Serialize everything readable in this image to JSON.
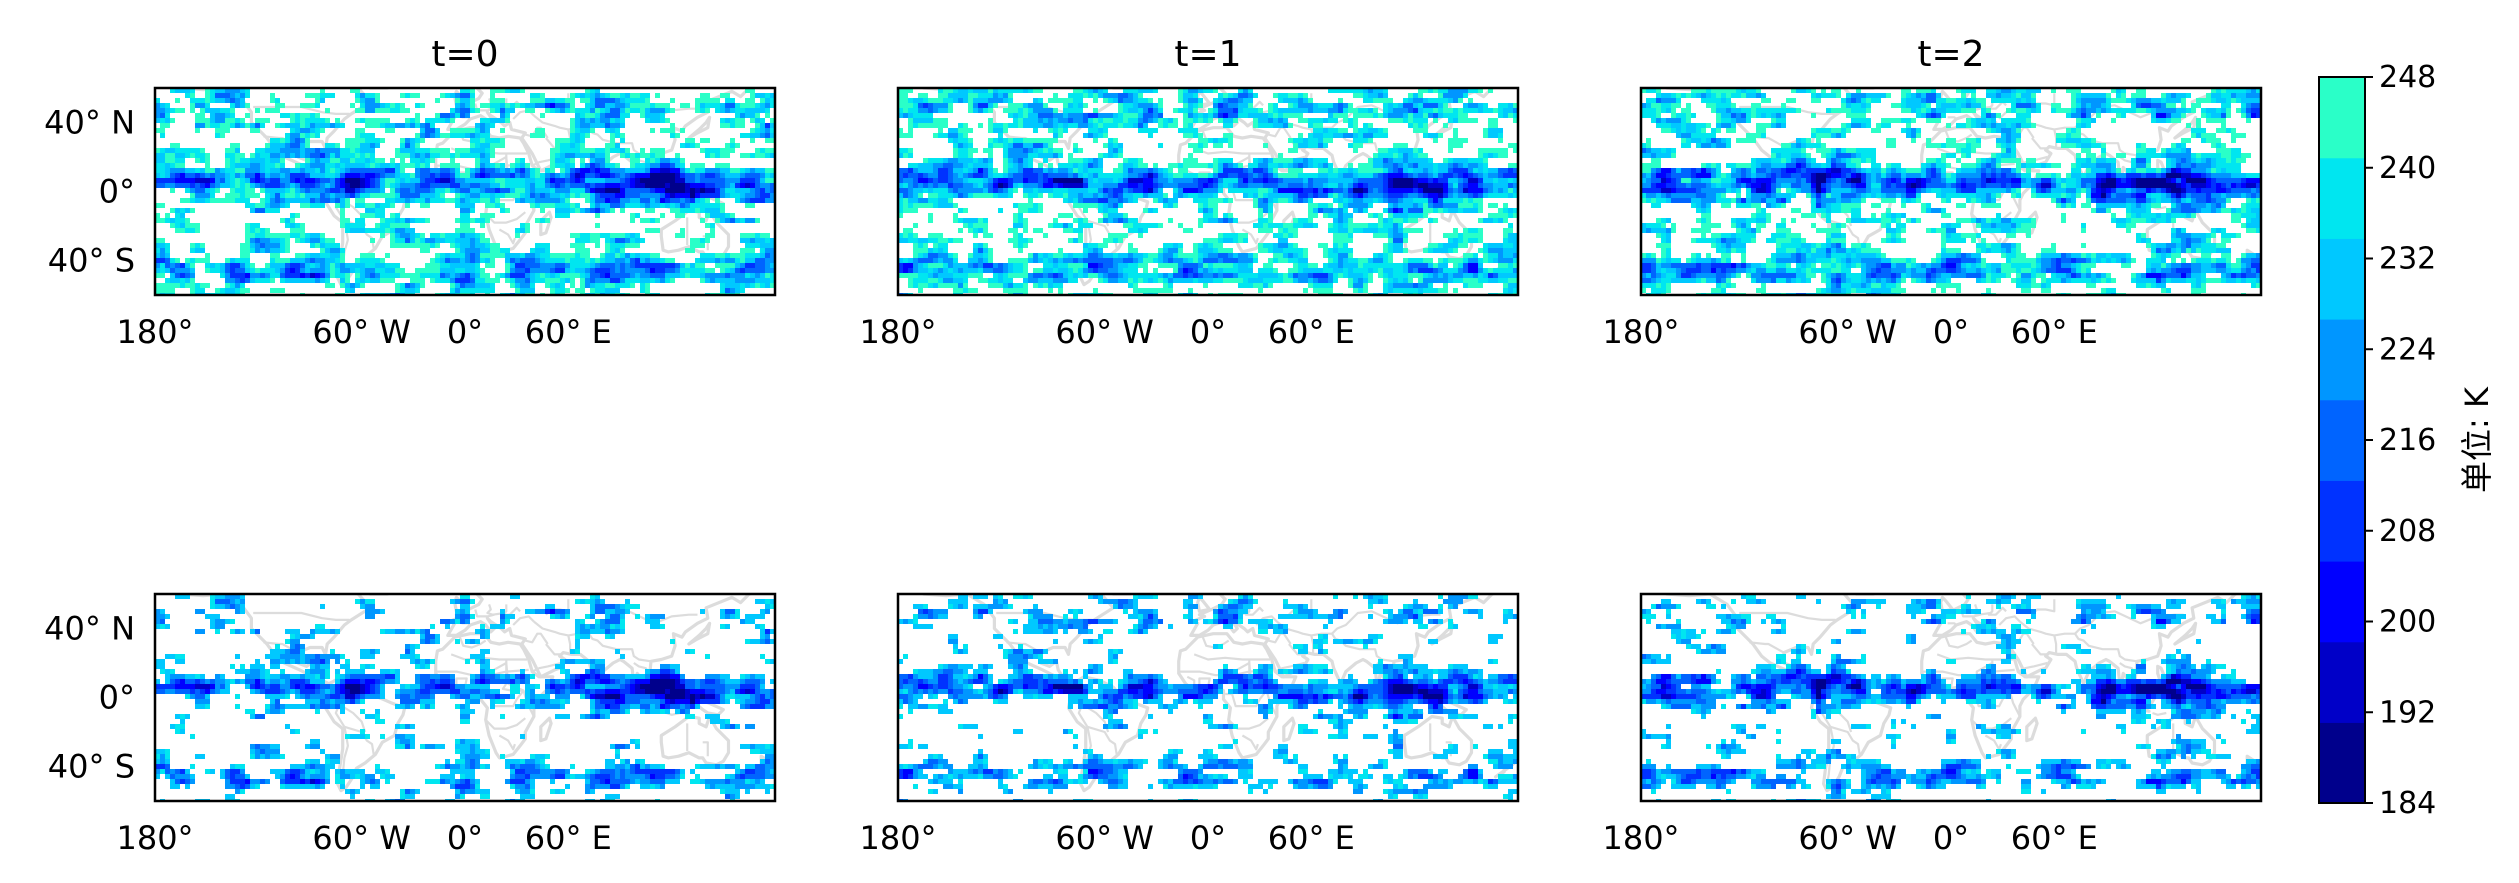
{
  "chart_data": {
    "type": "heatmap",
    "grid": false,
    "legend_placement": "right",
    "colorbar": {
      "label": "单位: K",
      "ticks": [
        "184",
        "192",
        "200",
        "208",
        "216",
        "224",
        "232",
        "240",
        "248"
      ],
      "range": [
        184,
        248
      ],
      "colors": [
        "#00008c",
        "#0000c8",
        "#0000ff",
        "#0032ff",
        "#0064ff",
        "#0096ff",
        "#00c8ff",
        "#00e6f0",
        "#2affc8"
      ]
    },
    "map": {
      "land_color": "#dcdcdc",
      "ocean_color": "#ffffff",
      "y_tick_labels": [
        "40° N",
        "0°",
        "40° S"
      ],
      "y_tick_values": [
        40,
        0,
        -40
      ],
      "x_tick_labels": [
        "180°",
        "60° W",
        "0°",
        "60° E"
      ],
      "x_tick_values": [
        -180,
        -60,
        0,
        60
      ],
      "lon_range": [
        -180,
        180
      ],
      "lat_range": [
        -60,
        60
      ]
    },
    "panels": [
      {
        "title": "t=0",
        "row": 0,
        "col": 0,
        "threshold": 248,
        "seed": 11
      },
      {
        "title": "t=1",
        "row": 0,
        "col": 1,
        "threshold": 248,
        "seed": 23
      },
      {
        "title": "t=2",
        "row": 0,
        "col": 2,
        "threshold": 248,
        "seed": 37
      },
      {
        "title": "",
        "row": 1,
        "col": 0,
        "threshold": 236,
        "seed": 11
      },
      {
        "title": "",
        "row": 1,
        "col": 1,
        "threshold": 236,
        "seed": 23
      },
      {
        "title": "",
        "row": 1,
        "col": 2,
        "threshold": 236,
        "seed": 37
      }
    ]
  }
}
